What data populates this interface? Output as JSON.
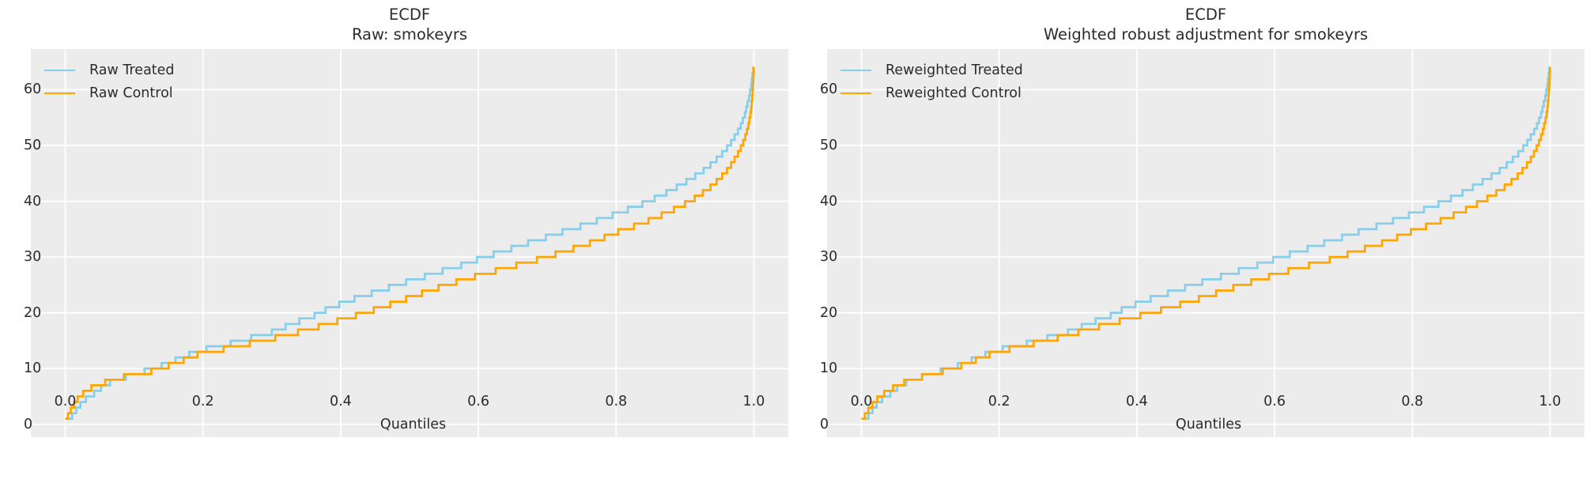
{
  "style": {
    "figure_bg": "#ffffff",
    "panel_bg": "#ececec",
    "grid_color": "#ffffff",
    "text_color": "#2b2b2b",
    "treated_color": "#87CEEB",
    "control_color": "#FFA500"
  },
  "chart_data": [
    {
      "type": "line",
      "subtype": "step-quantile-ecdf",
      "title": "ECDF",
      "subtitle": "Raw: smokeyrs",
      "xlabel": "Quantiles",
      "ylabel": "",
      "xlim": [
        -0.05,
        1.05
      ],
      "ylim": [
        -2.3,
        67.3
      ],
      "grid": true,
      "legend_position": "upper-left",
      "xtick_values": [
        0.0,
        0.2,
        0.4,
        0.6,
        0.8,
        1.0
      ],
      "xtick_labels": [
        "0.0",
        "0.2",
        "0.4",
        "0.6",
        "0.8",
        "1.0"
      ],
      "ytick_values": [
        0,
        10,
        20,
        30,
        40,
        50,
        60
      ],
      "ytick_labels": [
        "0",
        "10",
        "20",
        "30",
        "40",
        "50",
        "60"
      ],
      "series": [
        {
          "name": "Raw Treated",
          "color": "#87CEEB",
          "points": [
            [
              0.0,
              1
            ],
            [
              0.01,
              2
            ],
            [
              0.016,
              3
            ],
            [
              0.022,
              4
            ],
            [
              0.03,
              5
            ],
            [
              0.042,
              6
            ],
            [
              0.052,
              7
            ],
            [
              0.065,
              8
            ],
            [
              0.088,
              9
            ],
            [
              0.115,
              10
            ],
            [
              0.14,
              11
            ],
            [
              0.16,
              12
            ],
            [
              0.18,
              13
            ],
            [
              0.205,
              14
            ],
            [
              0.24,
              15
            ],
            [
              0.27,
              16
            ],
            [
              0.3,
              17
            ],
            [
              0.32,
              18
            ],
            [
              0.34,
              19
            ],
            [
              0.362,
              20
            ],
            [
              0.378,
              21
            ],
            [
              0.398,
              22
            ],
            [
              0.42,
              23
            ],
            [
              0.445,
              24
            ],
            [
              0.47,
              25
            ],
            [
              0.495,
              26
            ],
            [
              0.522,
              27
            ],
            [
              0.548,
              28
            ],
            [
              0.575,
              29
            ],
            [
              0.598,
              30
            ],
            [
              0.622,
              31
            ],
            [
              0.648,
              32
            ],
            [
              0.672,
              33
            ],
            [
              0.698,
              34
            ],
            [
              0.722,
              35
            ],
            [
              0.748,
              36
            ],
            [
              0.772,
              37
            ],
            [
              0.795,
              38
            ],
            [
              0.817,
              39
            ],
            [
              0.838,
              40
            ],
            [
              0.856,
              41
            ],
            [
              0.873,
              42
            ],
            [
              0.888,
              43
            ],
            [
              0.902,
              44
            ],
            [
              0.915,
              45
            ],
            [
              0.927,
              46
            ],
            [
              0.937,
              47
            ],
            [
              0.946,
              48
            ],
            [
              0.954,
              49
            ],
            [
              0.961,
              50
            ],
            [
              0.967,
              51
            ],
            [
              0.972,
              52
            ],
            [
              0.977,
              53
            ],
            [
              0.981,
              54
            ],
            [
              0.984,
              55
            ],
            [
              0.987,
              56
            ],
            [
              0.989,
              57
            ],
            [
              0.991,
              58
            ],
            [
              0.993,
              59
            ],
            [
              0.9945,
              60
            ],
            [
              0.996,
              61
            ],
            [
              0.997,
              62
            ],
            [
              0.998,
              63
            ],
            [
              0.999,
              64
            ],
            [
              1.0,
              64
            ]
          ]
        },
        {
          "name": "Raw Control",
          "color": "#FFA500",
          "points": [
            [
              0.0,
              1
            ],
            [
              0.004,
              2
            ],
            [
              0.008,
              3
            ],
            [
              0.013,
              4
            ],
            [
              0.018,
              5
            ],
            [
              0.026,
              6
            ],
            [
              0.038,
              7
            ],
            [
              0.058,
              8
            ],
            [
              0.085,
              9
            ],
            [
              0.125,
              10
            ],
            [
              0.15,
              11
            ],
            [
              0.172,
              12
            ],
            [
              0.192,
              13
            ],
            [
              0.23,
              14
            ],
            [
              0.268,
              15
            ],
            [
              0.305,
              16
            ],
            [
              0.338,
              17
            ],
            [
              0.368,
              18
            ],
            [
              0.395,
              19
            ],
            [
              0.422,
              20
            ],
            [
              0.448,
              21
            ],
            [
              0.472,
              22
            ],
            [
              0.495,
              23
            ],
            [
              0.518,
              24
            ],
            [
              0.542,
              25
            ],
            [
              0.568,
              26
            ],
            [
              0.595,
              27
            ],
            [
              0.625,
              28
            ],
            [
              0.655,
              29
            ],
            [
              0.685,
              30
            ],
            [
              0.712,
              31
            ],
            [
              0.738,
              32
            ],
            [
              0.762,
              33
            ],
            [
              0.783,
              34
            ],
            [
              0.803,
              35
            ],
            [
              0.826,
              36
            ],
            [
              0.847,
              37
            ],
            [
              0.866,
              38
            ],
            [
              0.884,
              39
            ],
            [
              0.9,
              40
            ],
            [
              0.914,
              41
            ],
            [
              0.926,
              42
            ],
            [
              0.937,
              43
            ],
            [
              0.946,
              44
            ],
            [
              0.954,
              45
            ],
            [
              0.961,
              46
            ],
            [
              0.967,
              47
            ],
            [
              0.972,
              48
            ],
            [
              0.977,
              49
            ],
            [
              0.981,
              50
            ],
            [
              0.9845,
              51
            ],
            [
              0.9875,
              52
            ],
            [
              0.99,
              53
            ],
            [
              0.992,
              54
            ],
            [
              0.9935,
              55
            ],
            [
              0.995,
              56
            ],
            [
              0.996,
              57
            ],
            [
              0.9968,
              58
            ],
            [
              0.9976,
              59
            ],
            [
              0.9982,
              60
            ],
            [
              0.9987,
              61
            ],
            [
              0.9991,
              62
            ],
            [
              0.9995,
              63
            ],
            [
              0.9998,
              64
            ],
            [
              1.0,
              64
            ]
          ]
        }
      ]
    },
    {
      "type": "line",
      "subtype": "step-quantile-ecdf",
      "title": "ECDF",
      "subtitle": "Weighted robust adjustment for smokeyrs",
      "xlabel": "Quantiles",
      "ylabel": "",
      "xlim": [
        -0.05,
        1.05
      ],
      "ylim": [
        -2.3,
        67.3
      ],
      "grid": true,
      "legend_position": "upper-left",
      "xtick_values": [
        0.0,
        0.2,
        0.4,
        0.6,
        0.8,
        1.0
      ],
      "xtick_labels": [
        "0.0",
        "0.2",
        "0.4",
        "0.6",
        "0.8",
        "1.0"
      ],
      "ytick_values": [
        0,
        10,
        20,
        30,
        40,
        50,
        60
      ],
      "ytick_labels": [
        "0",
        "10",
        "20",
        "30",
        "40",
        "50",
        "60"
      ],
      "series": [
        {
          "name": "Reweighted Treated",
          "color": "#87CEEB",
          "points": [
            [
              0.0,
              1
            ],
            [
              0.01,
              2
            ],
            [
              0.016,
              3
            ],
            [
              0.022,
              4
            ],
            [
              0.03,
              5
            ],
            [
              0.042,
              6
            ],
            [
              0.052,
              7
            ],
            [
              0.065,
              8
            ],
            [
              0.088,
              9
            ],
            [
              0.115,
              10
            ],
            [
              0.14,
              11
            ],
            [
              0.16,
              12
            ],
            [
              0.18,
              13
            ],
            [
              0.205,
              14
            ],
            [
              0.24,
              15
            ],
            [
              0.27,
              16
            ],
            [
              0.3,
              17
            ],
            [
              0.32,
              18
            ],
            [
              0.34,
              19
            ],
            [
              0.362,
              20
            ],
            [
              0.378,
              21
            ],
            [
              0.398,
              22
            ],
            [
              0.42,
              23
            ],
            [
              0.445,
              24
            ],
            [
              0.47,
              25
            ],
            [
              0.495,
              26
            ],
            [
              0.522,
              27
            ],
            [
              0.548,
              28
            ],
            [
              0.575,
              29
            ],
            [
              0.598,
              30
            ],
            [
              0.622,
              31
            ],
            [
              0.648,
              32
            ],
            [
              0.672,
              33
            ],
            [
              0.698,
              34
            ],
            [
              0.722,
              35
            ],
            [
              0.748,
              36
            ],
            [
              0.772,
              37
            ],
            [
              0.795,
              38
            ],
            [
              0.817,
              39
            ],
            [
              0.838,
              40
            ],
            [
              0.856,
              41
            ],
            [
              0.873,
              42
            ],
            [
              0.888,
              43
            ],
            [
              0.902,
              44
            ],
            [
              0.915,
              45
            ],
            [
              0.927,
              46
            ],
            [
              0.937,
              47
            ],
            [
              0.946,
              48
            ],
            [
              0.954,
              49
            ],
            [
              0.961,
              50
            ],
            [
              0.967,
              51
            ],
            [
              0.972,
              52
            ],
            [
              0.977,
              53
            ],
            [
              0.981,
              54
            ],
            [
              0.984,
              55
            ],
            [
              0.987,
              56
            ],
            [
              0.989,
              57
            ],
            [
              0.991,
              58
            ],
            [
              0.993,
              59
            ],
            [
              0.9945,
              60
            ],
            [
              0.996,
              61
            ],
            [
              0.997,
              62
            ],
            [
              0.998,
              63
            ],
            [
              0.999,
              64
            ],
            [
              1.0,
              64
            ]
          ]
        },
        {
          "name": "Reweighted Control",
          "color": "#FFA500",
          "points": [
            [
              0.0,
              1
            ],
            [
              0.005,
              2
            ],
            [
              0.01,
              3
            ],
            [
              0.016,
              4
            ],
            [
              0.023,
              5
            ],
            [
              0.033,
              6
            ],
            [
              0.046,
              7
            ],
            [
              0.062,
              8
            ],
            [
              0.088,
              9
            ],
            [
              0.118,
              10
            ],
            [
              0.145,
              11
            ],
            [
              0.166,
              12
            ],
            [
              0.186,
              13
            ],
            [
              0.215,
              14
            ],
            [
              0.25,
              15
            ],
            [
              0.285,
              16
            ],
            [
              0.315,
              17
            ],
            [
              0.345,
              18
            ],
            [
              0.375,
              19
            ],
            [
              0.405,
              20
            ],
            [
              0.435,
              21
            ],
            [
              0.463,
              22
            ],
            [
              0.49,
              23
            ],
            [
              0.515,
              24
            ],
            [
              0.54,
              25
            ],
            [
              0.566,
              26
            ],
            [
              0.592,
              27
            ],
            [
              0.62,
              28
            ],
            [
              0.65,
              29
            ],
            [
              0.68,
              30
            ],
            [
              0.706,
              31
            ],
            [
              0.731,
              32
            ],
            [
              0.756,
              33
            ],
            [
              0.778,
              34
            ],
            [
              0.798,
              35
            ],
            [
              0.82,
              36
            ],
            [
              0.841,
              37
            ],
            [
              0.86,
              38
            ],
            [
              0.878,
              39
            ],
            [
              0.894,
              40
            ],
            [
              0.909,
              41
            ],
            [
              0.922,
              42
            ],
            [
              0.934,
              43
            ],
            [
              0.944,
              44
            ],
            [
              0.953,
              45
            ],
            [
              0.96,
              46
            ],
            [
              0.9665,
              47
            ],
            [
              0.972,
              48
            ],
            [
              0.9765,
              49
            ],
            [
              0.9805,
              50
            ],
            [
              0.984,
              51
            ],
            [
              0.987,
              52
            ],
            [
              0.9895,
              53
            ],
            [
              0.9915,
              54
            ],
            [
              0.9935,
              55
            ],
            [
              0.995,
              56
            ],
            [
              0.996,
              57
            ],
            [
              0.9969,
              58
            ],
            [
              0.9977,
              59
            ],
            [
              0.9983,
              60
            ],
            [
              0.9988,
              61
            ],
            [
              0.9992,
              62
            ],
            [
              0.9996,
              63
            ],
            [
              0.9999,
              64
            ],
            [
              1.0,
              64
            ]
          ]
        }
      ]
    }
  ]
}
